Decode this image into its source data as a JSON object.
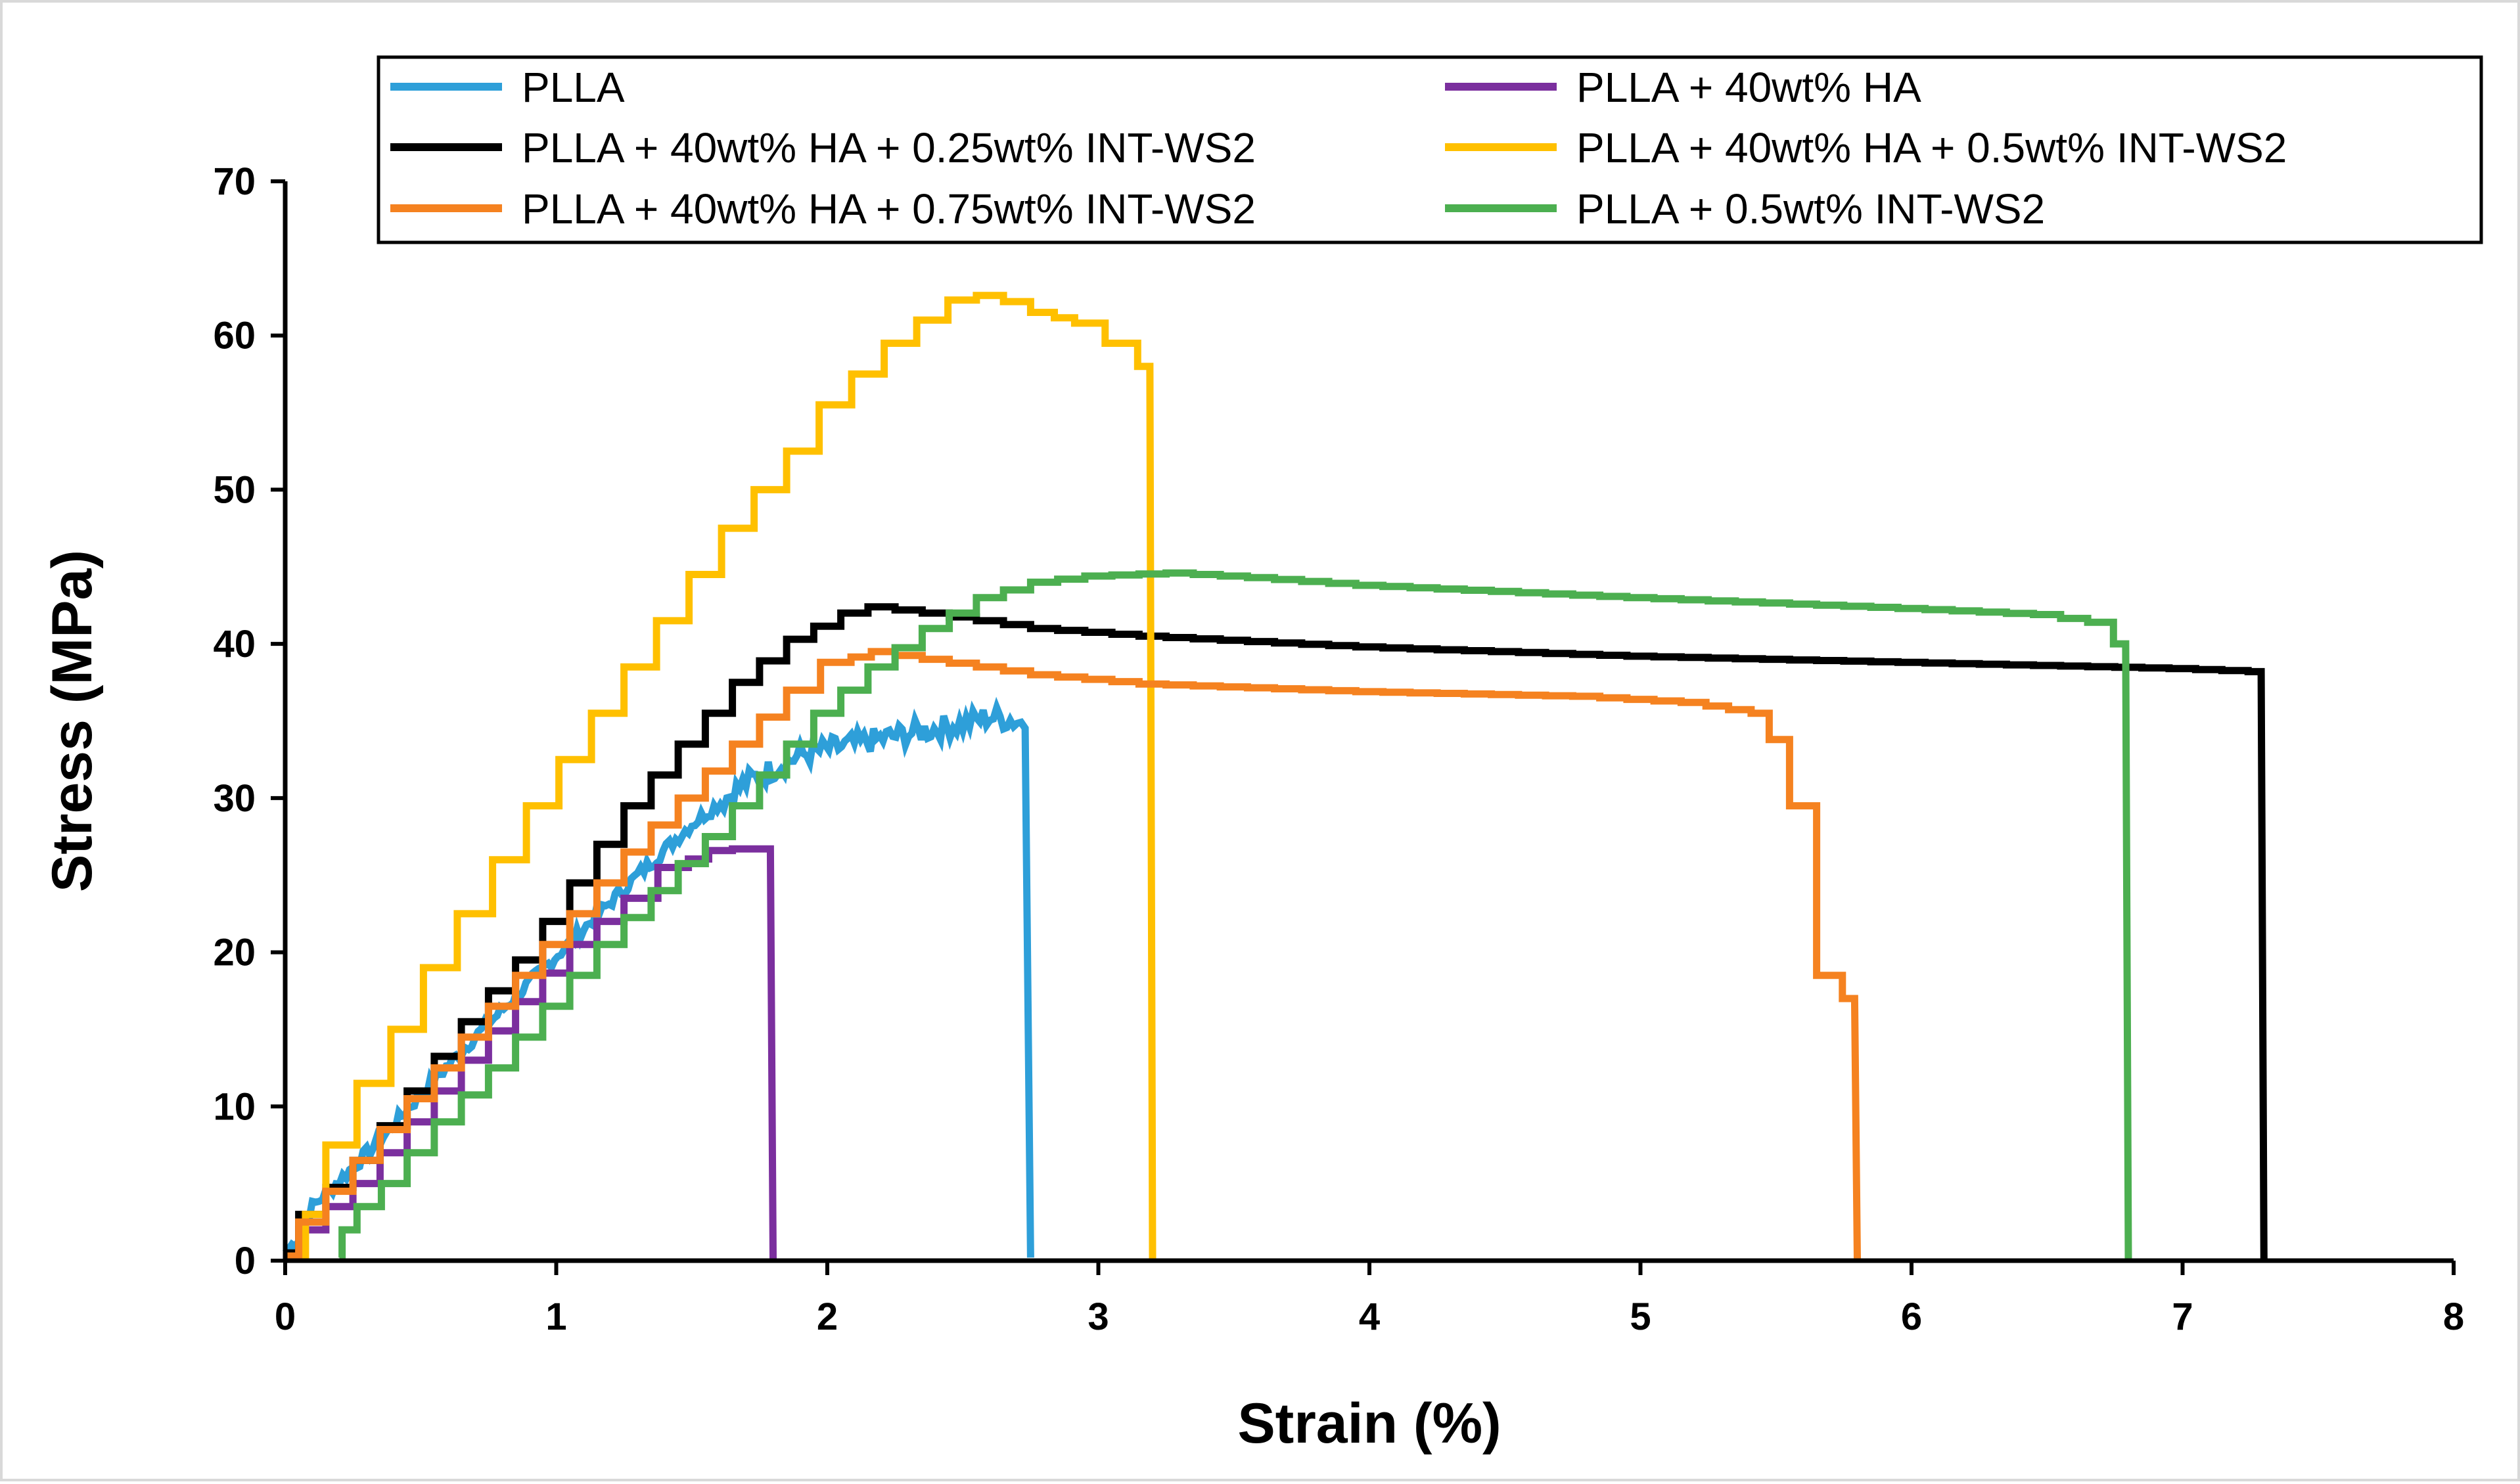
{
  "chart_data": {
    "type": "line",
    "title": "",
    "xlabel": "Strain (%)",
    "ylabel": "Stress (MPa)",
    "xlim": [
      0,
      8
    ],
    "ylim": [
      0,
      70
    ],
    "xticks": [
      0,
      1,
      2,
      3,
      4,
      5,
      6,
      7,
      8
    ],
    "yticks": [
      0,
      10,
      20,
      30,
      40,
      50,
      60,
      70
    ],
    "grid": false,
    "legend_position": "top",
    "series": [
      {
        "name": "PLLA",
        "color": "#2E9FD9",
        "style": "noisy",
        "points": [
          [
            0.0,
            0.5
          ],
          [
            0.05,
            1.5
          ],
          [
            0.1,
            3.5
          ],
          [
            0.2,
            5.2
          ],
          [
            0.35,
            7.8
          ],
          [
            0.5,
            10.8
          ],
          [
            0.7,
            14.5
          ],
          [
            0.9,
            18.0
          ],
          [
            1.1,
            21.5
          ],
          [
            1.3,
            25.0
          ],
          [
            1.5,
            28.3
          ],
          [
            1.7,
            31.0
          ],
          [
            1.9,
            32.8
          ],
          [
            2.1,
            33.5
          ],
          [
            2.3,
            34.2
          ],
          [
            2.5,
            34.8
          ],
          [
            2.6,
            35.3
          ],
          [
            2.7,
            35.0
          ],
          [
            2.73,
            34.8
          ],
          [
            2.75,
            0.2
          ]
        ]
      },
      {
        "name": "PLLA + 40wt% HA",
        "color": "#7B2F9E",
        "style": "step",
        "points": [
          [
            0.0,
            0.2
          ],
          [
            0.1,
            2.0
          ],
          [
            0.3,
            5.0
          ],
          [
            0.5,
            9.0
          ],
          [
            0.7,
            13.0
          ],
          [
            0.9,
            16.8
          ],
          [
            1.1,
            20.5
          ],
          [
            1.3,
            23.5
          ],
          [
            1.45,
            25.5
          ],
          [
            1.6,
            26.6
          ],
          [
            1.7,
            26.7
          ],
          [
            1.79,
            26.7
          ],
          [
            1.8,
            0.1
          ]
        ]
      },
      {
        "name": "PLLA + 40wt% HA + 0.25wt% INT-WS2",
        "color": "#000000",
        "style": "step",
        "points": [
          [
            0.0,
            0.5
          ],
          [
            0.1,
            3.0
          ],
          [
            0.3,
            6.5
          ],
          [
            0.5,
            11.0
          ],
          [
            0.7,
            15.5
          ],
          [
            0.9,
            19.5
          ],
          [
            1.1,
            24.5
          ],
          [
            1.3,
            29.5
          ],
          [
            1.5,
            33.5
          ],
          [
            1.7,
            37.5
          ],
          [
            1.9,
            40.3
          ],
          [
            2.1,
            42.0
          ],
          [
            2.2,
            42.4
          ],
          [
            2.4,
            42.0
          ],
          [
            2.8,
            41.0
          ],
          [
            3.2,
            40.5
          ],
          [
            4.0,
            39.8
          ],
          [
            5.0,
            39.2
          ],
          [
            6.0,
            38.8
          ],
          [
            7.0,
            38.4
          ],
          [
            7.29,
            38.2
          ],
          [
            7.3,
            0.1
          ]
        ]
      },
      {
        "name": "PLLA + 40wt% HA + 0.5wt% INT-WS2",
        "color": "#FFC000",
        "style": "step",
        "points": [
          [
            0.05,
            0.3
          ],
          [
            0.1,
            3.0
          ],
          [
            0.2,
            7.5
          ],
          [
            0.33,
            11.5
          ],
          [
            0.45,
            15.0
          ],
          [
            0.57,
            19.0
          ],
          [
            0.7,
            22.5
          ],
          [
            0.83,
            26.0
          ],
          [
            0.95,
            29.5
          ],
          [
            1.07,
            32.5
          ],
          [
            1.19,
            35.5
          ],
          [
            1.31,
            38.5
          ],
          [
            1.43,
            41.5
          ],
          [
            1.55,
            44.5
          ],
          [
            1.67,
            47.5
          ],
          [
            1.79,
            50.0
          ],
          [
            1.91,
            52.5
          ],
          [
            2.03,
            55.5
          ],
          [
            2.15,
            57.5
          ],
          [
            2.27,
            59.5
          ],
          [
            2.39,
            61.0
          ],
          [
            2.5,
            62.3
          ],
          [
            2.6,
            62.6
          ],
          [
            2.7,
            62.2
          ],
          [
            2.8,
            61.5
          ],
          [
            2.95,
            60.8
          ],
          [
            3.1,
            59.5
          ],
          [
            3.19,
            58.0
          ],
          [
            3.2,
            0.1
          ]
        ]
      },
      {
        "name": "PLLA + 40wt% HA + 0.75wt% INT-WS2",
        "color": "#F58220",
        "style": "step",
        "points": [
          [
            0.0,
            0.3
          ],
          [
            0.1,
            2.5
          ],
          [
            0.3,
            6.5
          ],
          [
            0.5,
            10.5
          ],
          [
            0.7,
            14.5
          ],
          [
            0.9,
            18.5
          ],
          [
            1.1,
            22.5
          ],
          [
            1.3,
            26.5
          ],
          [
            1.5,
            30.0
          ],
          [
            1.7,
            33.5
          ],
          [
            1.9,
            37.0
          ],
          [
            2.05,
            38.8
          ],
          [
            2.2,
            39.5
          ],
          [
            2.4,
            39.0
          ],
          [
            2.8,
            38.0
          ],
          [
            3.2,
            37.4
          ],
          [
            4.0,
            36.9
          ],
          [
            4.8,
            36.6
          ],
          [
            5.2,
            36.2
          ],
          [
            5.45,
            35.5
          ],
          [
            5.5,
            33.8
          ],
          [
            5.6,
            29.5
          ],
          [
            5.7,
            18.5
          ],
          [
            5.79,
            17.0
          ],
          [
            5.8,
            0.1
          ]
        ]
      },
      {
        "name": "PLLA + 0.5wt% INT-WS2",
        "color": "#4CAF50",
        "style": "step",
        "points": [
          [
            0.2,
            0.2
          ],
          [
            0.22,
            2.0
          ],
          [
            0.4,
            5.0
          ],
          [
            0.6,
            9.0
          ],
          [
            0.8,
            12.5
          ],
          [
            1.0,
            16.5
          ],
          [
            1.2,
            20.5
          ],
          [
            1.4,
            24.0
          ],
          [
            1.6,
            27.5
          ],
          [
            1.8,
            31.5
          ],
          [
            2.0,
            35.5
          ],
          [
            2.2,
            38.5
          ],
          [
            2.4,
            41.0
          ],
          [
            2.6,
            43.0
          ],
          [
            2.8,
            44.0
          ],
          [
            3.0,
            44.4
          ],
          [
            3.3,
            44.6
          ],
          [
            3.6,
            44.3
          ],
          [
            4.0,
            43.8
          ],
          [
            5.0,
            43.0
          ],
          [
            6.0,
            42.3
          ],
          [
            6.5,
            41.9
          ],
          [
            6.7,
            41.4
          ],
          [
            6.79,
            40.0
          ],
          [
            6.8,
            0.1
          ]
        ]
      }
    ]
  }
}
